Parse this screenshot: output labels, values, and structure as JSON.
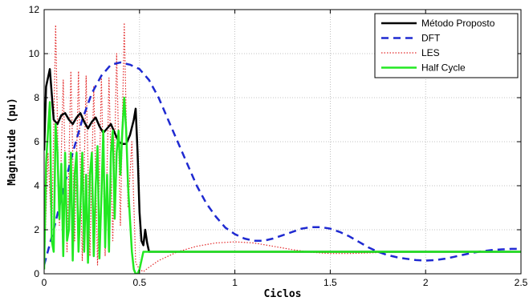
{
  "chart_data": {
    "type": "line",
    "title": "",
    "xlabel": "Ciclos",
    "ylabel": "Magnitude (pu)",
    "xlim": [
      0,
      2.5
    ],
    "ylim": [
      0,
      12
    ],
    "x_ticks": [
      "0",
      "0.5",
      "1",
      "1.5",
      "2",
      "2.5"
    ],
    "y_ticks": [
      "0",
      "2",
      "4",
      "6",
      "8",
      "10",
      "12"
    ],
    "grid": true,
    "legend_position": "top-right",
    "series": [
      {
        "name": "Método Proposto",
        "color": "#000000",
        "style": "solid",
        "points": [
          [
            0,
            5.6
          ],
          [
            0.01,
            8.5
          ],
          [
            0.03,
            9.3
          ],
          [
            0.05,
            7.0
          ],
          [
            0.07,
            6.8
          ],
          [
            0.09,
            7.2
          ],
          [
            0.11,
            7.3
          ],
          [
            0.13,
            7.0
          ],
          [
            0.15,
            6.8
          ],
          [
            0.17,
            7.1
          ],
          [
            0.19,
            7.3
          ],
          [
            0.21,
            6.9
          ],
          [
            0.23,
            6.6
          ],
          [
            0.25,
            6.9
          ],
          [
            0.27,
            7.1
          ],
          [
            0.29,
            6.7
          ],
          [
            0.31,
            6.4
          ],
          [
            0.33,
            6.6
          ],
          [
            0.35,
            6.8
          ],
          [
            0.37,
            6.4
          ],
          [
            0.39,
            6.0
          ],
          [
            0.41,
            5.9
          ],
          [
            0.43,
            5.9
          ],
          [
            0.45,
            6.3
          ],
          [
            0.47,
            7.0
          ],
          [
            0.48,
            7.5
          ],
          [
            0.49,
            5.5
          ],
          [
            0.5,
            2.8
          ],
          [
            0.51,
            1.5
          ],
          [
            0.52,
            1.3
          ],
          [
            0.53,
            2.0
          ],
          [
            0.54,
            1.4
          ],
          [
            0.55,
            1.0
          ],
          [
            0.6,
            1.0
          ],
          [
            1.0,
            1.0
          ],
          [
            1.5,
            1.0
          ],
          [
            2.0,
            1.0
          ],
          [
            2.5,
            1.0
          ]
        ]
      },
      {
        "name": "DFT",
        "color": "#1f2ad1",
        "style": "dashed",
        "points": [
          [
            0,
            0.4
          ],
          [
            0.05,
            2.0
          ],
          [
            0.1,
            3.8
          ],
          [
            0.15,
            5.5
          ],
          [
            0.2,
            7.0
          ],
          [
            0.25,
            8.2
          ],
          [
            0.3,
            9.0
          ],
          [
            0.35,
            9.5
          ],
          [
            0.4,
            9.6
          ],
          [
            0.45,
            9.5
          ],
          [
            0.5,
            9.3
          ],
          [
            0.55,
            8.8
          ],
          [
            0.6,
            8.0
          ],
          [
            0.65,
            7.0
          ],
          [
            0.7,
            6.0
          ],
          [
            0.75,
            5.0
          ],
          [
            0.8,
            4.0
          ],
          [
            0.85,
            3.2
          ],
          [
            0.9,
            2.6
          ],
          [
            0.95,
            2.1
          ],
          [
            1.0,
            1.8
          ],
          [
            1.05,
            1.6
          ],
          [
            1.1,
            1.5
          ],
          [
            1.15,
            1.5
          ],
          [
            1.2,
            1.6
          ],
          [
            1.25,
            1.75
          ],
          [
            1.3,
            1.9
          ],
          [
            1.35,
            2.05
          ],
          [
            1.4,
            2.12
          ],
          [
            1.45,
            2.12
          ],
          [
            1.5,
            2.05
          ],
          [
            1.55,
            1.9
          ],
          [
            1.6,
            1.7
          ],
          [
            1.65,
            1.45
          ],
          [
            1.7,
            1.2
          ],
          [
            1.75,
            1.0
          ],
          [
            1.8,
            0.85
          ],
          [
            1.85,
            0.75
          ],
          [
            1.9,
            0.68
          ],
          [
            1.95,
            0.62
          ],
          [
            2.0,
            0.6
          ],
          [
            2.05,
            0.62
          ],
          [
            2.1,
            0.68
          ],
          [
            2.15,
            0.77
          ],
          [
            2.2,
            0.87
          ],
          [
            2.25,
            0.96
          ],
          [
            2.3,
            1.03
          ],
          [
            2.35,
            1.08
          ],
          [
            2.4,
            1.11
          ],
          [
            2.45,
            1.13
          ],
          [
            2.5,
            1.13
          ]
        ]
      },
      {
        "name": "LES",
        "color": "#e32b2b",
        "style": "dotted",
        "points": [
          [
            0,
            0.3
          ],
          [
            0.02,
            5.5
          ],
          [
            0.04,
            1.8
          ],
          [
            0.06,
            11.3
          ],
          [
            0.08,
            2.2
          ],
          [
            0.1,
            8.8
          ],
          [
            0.12,
            1.0
          ],
          [
            0.14,
            9.2
          ],
          [
            0.16,
            1.5
          ],
          [
            0.18,
            9.2
          ],
          [
            0.2,
            0.6
          ],
          [
            0.22,
            9.0
          ],
          [
            0.24,
            0.8
          ],
          [
            0.26,
            8.5
          ],
          [
            0.28,
            0.4
          ],
          [
            0.3,
            8.9
          ],
          [
            0.32,
            0.8
          ],
          [
            0.34,
            8.9
          ],
          [
            0.36,
            1.5
          ],
          [
            0.38,
            10.0
          ],
          [
            0.4,
            2.2
          ],
          [
            0.42,
            11.4
          ],
          [
            0.44,
            3.0
          ],
          [
            0.46,
            6.0
          ],
          [
            0.48,
            0.5
          ],
          [
            0.5,
            0.2
          ],
          [
            0.52,
            0.1
          ],
          [
            0.55,
            0.3
          ],
          [
            0.6,
            0.6
          ],
          [
            0.7,
            1.0
          ],
          [
            0.8,
            1.25
          ],
          [
            0.9,
            1.4
          ],
          [
            1.0,
            1.45
          ],
          [
            1.1,
            1.4
          ],
          [
            1.2,
            1.25
          ],
          [
            1.3,
            1.1
          ],
          [
            1.4,
            0.98
          ],
          [
            1.5,
            0.92
          ],
          [
            1.6,
            0.92
          ],
          [
            1.7,
            0.95
          ],
          [
            1.8,
            0.98
          ],
          [
            2.0,
            1.0
          ],
          [
            2.5,
            1.0
          ]
        ]
      },
      {
        "name": "Half Cycle",
        "color": "#22e822",
        "style": "solid",
        "points": [
          [
            0,
            0.2
          ],
          [
            0.01,
            5.0
          ],
          [
            0.02,
            6.5
          ],
          [
            0.03,
            7.8
          ],
          [
            0.04,
            1.5
          ],
          [
            0.05,
            1.0
          ],
          [
            0.06,
            6.8
          ],
          [
            0.07,
            5.5
          ],
          [
            0.08,
            2.5
          ],
          [
            0.09,
            5.0
          ],
          [
            0.1,
            0.8
          ],
          [
            0.11,
            5.5
          ],
          [
            0.12,
            1.5
          ],
          [
            0.13,
            2.0
          ],
          [
            0.14,
            5.5
          ],
          [
            0.15,
            0.6
          ],
          [
            0.16,
            4.5
          ],
          [
            0.17,
            5.5
          ],
          [
            0.18,
            1.0
          ],
          [
            0.19,
            3.0
          ],
          [
            0.2,
            5.5
          ],
          [
            0.21,
            1.0
          ],
          [
            0.22,
            4.5
          ],
          [
            0.23,
            0.5
          ],
          [
            0.24,
            4.5
          ],
          [
            0.25,
            5.5
          ],
          [
            0.26,
            0.8
          ],
          [
            0.27,
            4.0
          ],
          [
            0.28,
            5.8
          ],
          [
            0.29,
            0.7
          ],
          [
            0.3,
            3.5
          ],
          [
            0.31,
            6.5
          ],
          [
            0.32,
            1.2
          ],
          [
            0.33,
            4.5
          ],
          [
            0.34,
            1.0
          ],
          [
            0.35,
            5.5
          ],
          [
            0.36,
            6.5
          ],
          [
            0.37,
            2.5
          ],
          [
            0.38,
            5.5
          ],
          [
            0.39,
            6.5
          ],
          [
            0.4,
            4.5
          ],
          [
            0.41,
            6.5
          ],
          [
            0.42,
            8.0
          ],
          [
            0.43,
            6.5
          ],
          [
            0.44,
            4.0
          ],
          [
            0.45,
            2.5
          ],
          [
            0.46,
            1.0
          ],
          [
            0.47,
            0.2
          ],
          [
            0.48,
            0.0
          ],
          [
            0.49,
            0.0
          ],
          [
            0.5,
            0.2
          ],
          [
            0.51,
            0.6
          ],
          [
            0.52,
            1.0
          ],
          [
            0.6,
            1.0
          ],
          [
            1.0,
            1.0
          ],
          [
            1.5,
            1.0
          ],
          [
            2.0,
            1.0
          ],
          [
            2.5,
            1.0
          ]
        ]
      }
    ]
  }
}
